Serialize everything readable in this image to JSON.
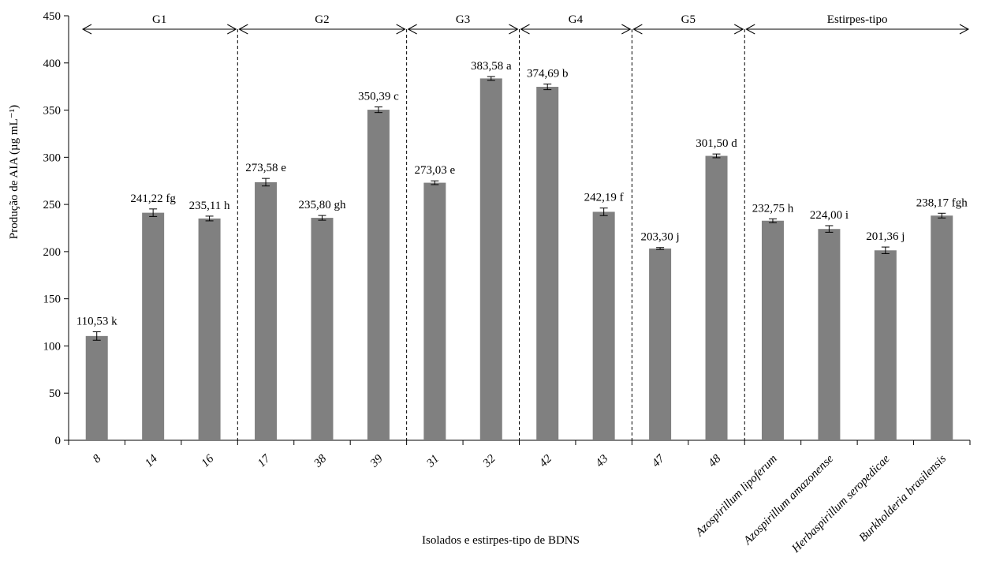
{
  "chart_data": {
    "type": "bar",
    "xlabel": "Isolados e estirpes-tipo de BDNS",
    "ylabel": "Produção de AIA (µg mL⁻¹)",
    "ylim": [
      0,
      450
    ],
    "yticks": [
      0,
      50,
      100,
      150,
      200,
      250,
      300,
      350,
      400,
      450
    ],
    "grid": false,
    "bar_color": "#808080",
    "categories": [
      "8",
      "14",
      "16",
      "17",
      "38",
      "39",
      "31",
      "32",
      "42",
      "43",
      "47",
      "48",
      "Azospirillum lipoferum",
      "Azospirillum amazonense",
      "Herbaspirillum seropedicae",
      "Burkholderia brasilensis"
    ],
    "italic_categories": [
      true,
      true,
      true,
      true,
      true,
      true,
      true,
      true,
      true,
      true,
      true,
      true,
      true,
      true,
      true,
      true
    ],
    "values": [
      110.53,
      241.22,
      235.11,
      273.58,
      235.8,
      350.39,
      273.03,
      383.58,
      374.69,
      242.19,
      203.3,
      301.5,
      232.75,
      224.0,
      201.36,
      238.17
    ],
    "errors": [
      4.5,
      4.0,
      2.5,
      4.0,
      2.5,
      3.0,
      2.0,
      2.0,
      3.0,
      4.0,
      1.0,
      2.0,
      2.0,
      3.5,
      3.5,
      2.5
    ],
    "data_labels": [
      "110,53 k",
      "241,22 fg",
      "235,11 h",
      "273,58 e",
      "235,80 gh",
      "350,39 c",
      "273,03 e",
      "383,58 a",
      "374,69 b",
      "242,19 f",
      "203,30 j",
      "301,50 d",
      "232,75 h",
      "224,00 i",
      "201,36 j",
      "238,17 fgh"
    ],
    "groups": [
      {
        "label": "G1",
        "from": 0,
        "to": 2
      },
      {
        "label": "G2",
        "from": 3,
        "to": 5
      },
      {
        "label": "G3",
        "from": 6,
        "to": 7
      },
      {
        "label": "G4",
        "from": 8,
        "to": 9
      },
      {
        "label": "G5",
        "from": 10,
        "to": 11
      },
      {
        "label": "Estirpes-tipo",
        "from": 12,
        "to": 15
      }
    ]
  }
}
